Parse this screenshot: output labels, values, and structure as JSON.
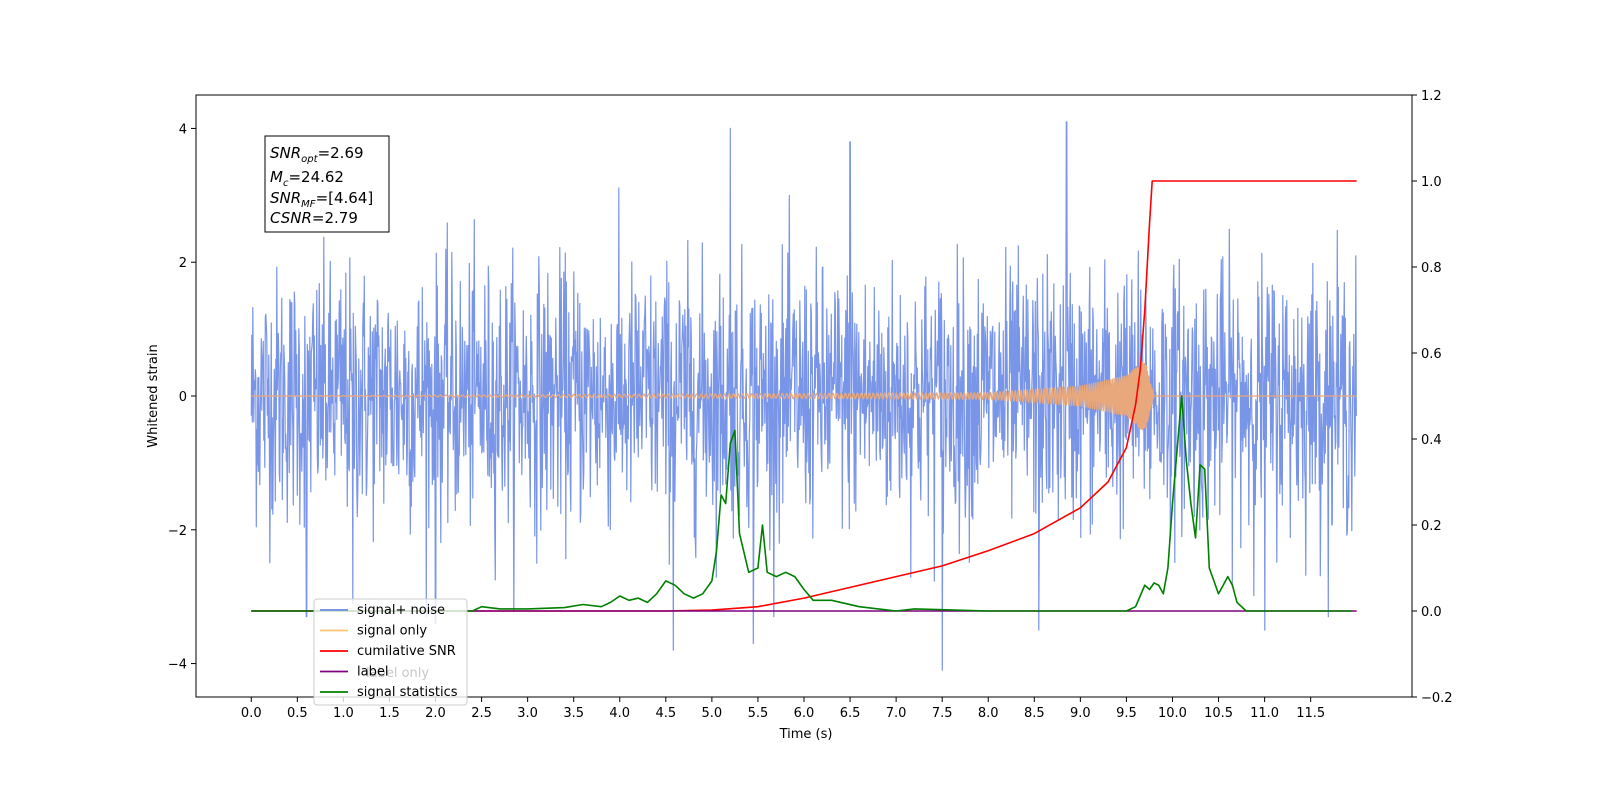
{
  "chart_data": {
    "type": "line",
    "xlabel": "Time (s)",
    "ylabel": "Whitened strain",
    "xlim": [
      -0.6,
      12.6
    ],
    "ylim": [
      -4.5,
      4.5
    ],
    "ylim_right": [
      -0.2,
      1.2
    ],
    "x_ticks": [
      0.0,
      0.5,
      1.0,
      1.5,
      2.0,
      2.5,
      3.0,
      3.5,
      4.0,
      4.5,
      5.0,
      5.5,
      6.0,
      6.5,
      7.0,
      7.5,
      8.0,
      8.5,
      9.0,
      9.5,
      10.0,
      10.5,
      11.0,
      11.5
    ],
    "x_tick_labels": [
      "0.0",
      "0.5",
      "1.0",
      "1.5",
      "2.0",
      "2.5",
      "3.0",
      "3.5",
      "4.0",
      "4.5",
      "5.0",
      "5.5",
      "6.0",
      "6.5",
      "7.0",
      "7.5",
      "8.0",
      "8.5",
      "9.0",
      "9.5",
      "10.0",
      "10.5",
      "11.0",
      "11.5"
    ],
    "y_ticks_left": [
      -4,
      -2,
      0,
      2,
      4
    ],
    "y_tick_labels_left": [
      "−4",
      "−2",
      "0",
      "2",
      "4"
    ],
    "y_ticks_right": [
      -0.2,
      0.0,
      0.2,
      0.4,
      0.6,
      0.8,
      1.0,
      1.2
    ],
    "y_tick_labels_right": [
      "−0.2",
      "0.0",
      "0.2",
      "0.4",
      "0.6",
      "0.8",
      "1.0",
      "1.2"
    ],
    "grid": false,
    "legend_position": "lower-left",
    "legend": [
      {
        "label": "signal+ noise",
        "color": "#6a8ae6"
      },
      {
        "label": "signal only",
        "color": "#ffc46b"
      },
      {
        "label": "cumilative SNR",
        "color": "#ff0000"
      },
      {
        "label": "label",
        "color": "#800080"
      },
      {
        "label": "signal statistics",
        "color": "#008000"
      }
    ],
    "hidden_legend_text": "label only",
    "annotation": {
      "snr_opt": "2.69",
      "mc": "24.62",
      "snr_mf": "[4.64]",
      "csnr": "2.79"
    },
    "series": [
      {
        "name": "signal+ noise",
        "axis": "left",
        "style": "noise",
        "color": "#6a8ae6",
        "x_range": [
          0.0,
          12.0
        ],
        "envelope": [
          -2.3,
          2.4
        ],
        "x": [
          0.6,
          1.1,
          2.0,
          4.58,
          5.2,
          5.45,
          6.5,
          7.5,
          8.55,
          8.85,
          11.0
        ],
        "y": [
          -3.3,
          -3.1,
          -3.4,
          -3.8,
          4.0,
          -3.7,
          3.8,
          -4.1,
          -3.5,
          4.1,
          -3.5
        ]
      },
      {
        "name": "signal only",
        "axis": "left",
        "style": "chirp",
        "color": "#e8a87c",
        "x": [
          0.0,
          8.0,
          9.0,
          9.5,
          9.7,
          9.8,
          12.0
        ],
        "y": [
          0.0,
          0.05,
          0.15,
          0.3,
          0.55,
          0.0,
          0.0
        ]
      },
      {
        "name": "cumilative SNR",
        "axis": "right",
        "color": "#ff0000",
        "x": [
          0.0,
          4.5,
          5.0,
          5.5,
          6.0,
          6.5,
          7.0,
          7.5,
          8.0,
          8.5,
          9.0,
          9.3,
          9.5,
          9.6,
          9.65,
          9.7,
          9.75,
          9.78,
          12.0
        ],
        "y": [
          0.0,
          0.0,
          0.002,
          0.01,
          0.03,
          0.055,
          0.08,
          0.105,
          0.14,
          0.18,
          0.24,
          0.3,
          0.38,
          0.48,
          0.56,
          0.7,
          0.9,
          1.0,
          1.0
        ]
      },
      {
        "name": "label",
        "axis": "right",
        "color": "#800080",
        "x": [
          0.0,
          12.0
        ],
        "y": [
          0.0,
          0.0
        ]
      },
      {
        "name": "signal statistics",
        "axis": "right",
        "color": "#008000",
        "x": [
          0.0,
          2.4,
          2.5,
          2.7,
          3.0,
          3.4,
          3.6,
          3.8,
          3.9,
          4.0,
          4.1,
          4.2,
          4.3,
          4.4,
          4.5,
          4.6,
          4.7,
          4.8,
          4.9,
          5.0,
          5.05,
          5.1,
          5.15,
          5.2,
          5.25,
          5.3,
          5.4,
          5.5,
          5.55,
          5.6,
          5.7,
          5.8,
          5.9,
          6.0,
          6.1,
          6.3,
          6.6,
          7.0,
          7.2,
          7.5,
          8.0,
          9.0,
          9.5,
          9.6,
          9.7,
          9.75,
          9.8,
          9.85,
          9.9,
          9.95,
          10.0,
          10.1,
          10.15,
          10.2,
          10.25,
          10.3,
          10.35,
          10.4,
          10.45,
          10.5,
          10.55,
          10.6,
          10.65,
          10.7,
          10.8,
          11.0,
          11.95
        ],
        "y": [
          0.0,
          0.0,
          0.01,
          0.005,
          0.005,
          0.008,
          0.015,
          0.01,
          0.02,
          0.035,
          0.025,
          0.03,
          0.02,
          0.04,
          0.07,
          0.06,
          0.04,
          0.03,
          0.04,
          0.07,
          0.14,
          0.27,
          0.25,
          0.39,
          0.42,
          0.18,
          0.09,
          0.1,
          0.2,
          0.09,
          0.08,
          0.09,
          0.08,
          0.05,
          0.025,
          0.025,
          0.01,
          0.0,
          0.005,
          0.003,
          0.0,
          0.0,
          0.0,
          0.01,
          0.06,
          0.05,
          0.065,
          0.06,
          0.04,
          0.1,
          0.25,
          0.5,
          0.35,
          0.25,
          0.17,
          0.34,
          0.33,
          0.1,
          0.07,
          0.04,
          0.06,
          0.08,
          0.06,
          0.02,
          0.0,
          0.0,
          0.0
        ]
      }
    ]
  }
}
